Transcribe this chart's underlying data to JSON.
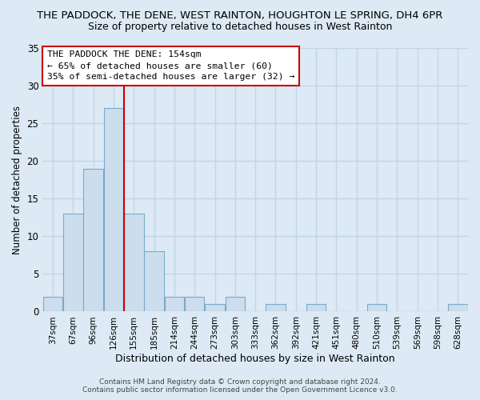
{
  "title": "THE PADDOCK, THE DENE, WEST RAINTON, HOUGHTON LE SPRING, DH4 6PR",
  "subtitle": "Size of property relative to detached houses in West Rainton",
  "xlabel": "Distribution of detached houses by size in West Rainton",
  "ylabel": "Number of detached properties",
  "bin_labels": [
    "37sqm",
    "67sqm",
    "96sqm",
    "126sqm",
    "155sqm",
    "185sqm",
    "214sqm",
    "244sqm",
    "273sqm",
    "303sqm",
    "333sqm",
    "362sqm",
    "392sqm",
    "421sqm",
    "451sqm",
    "480sqm",
    "510sqm",
    "539sqm",
    "569sqm",
    "598sqm",
    "628sqm"
  ],
  "bar_values": [
    2,
    13,
    19,
    27,
    13,
    8,
    2,
    2,
    1,
    2,
    0,
    1,
    0,
    1,
    0,
    0,
    1,
    0,
    0,
    0,
    1
  ],
  "bar_color": "#ccdded",
  "bar_edge_color": "#7aaac8",
  "reference_line_index": 4,
  "reference_line_color": "#cc0000",
  "ylim": [
    0,
    35
  ],
  "yticks": [
    0,
    5,
    10,
    15,
    20,
    25,
    30,
    35
  ],
  "annotation_title": "THE PADDOCK THE DENE: 154sqm",
  "annotation_line1": "← 65% of detached houses are smaller (60)",
  "annotation_line2": "35% of semi-detached houses are larger (32) →",
  "annotation_box_facecolor": "#ffffff",
  "annotation_box_edgecolor": "#cc0000",
  "footer1": "Contains HM Land Registry data © Crown copyright and database right 2024.",
  "footer2": "Contains public sector information licensed under the Open Government Licence v3.0.",
  "background_color": "#ddeaf5",
  "plot_background": "#ddeaf5",
  "grid_color": "#c0d5e8",
  "title_fontsize": 9.5,
  "subtitle_fontsize": 9.0,
  "ylabel_fontsize": 8.5,
  "xlabel_fontsize": 9.0
}
